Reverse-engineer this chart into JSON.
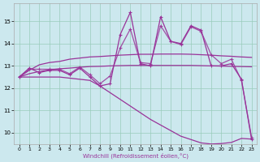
{
  "bg_color": "#cce8ee",
  "grid_color": "#99ccbb",
  "line_color": "#993399",
  "xlabel": "Windchill (Refroidissement éolien,°C)",
  "x": [
    0,
    1,
    2,
    3,
    4,
    5,
    6,
    7,
    8,
    9,
    10,
    11,
    12,
    13,
    14,
    15,
    16,
    17,
    18,
    19,
    20,
    21,
    22,
    23
  ],
  "y_zigzag": [
    12.5,
    12.9,
    12.7,
    12.8,
    12.8,
    12.6,
    12.9,
    12.5,
    12.1,
    12.2,
    14.4,
    15.4,
    13.1,
    13.0,
    15.2,
    14.1,
    14.0,
    14.8,
    14.6,
    13.0,
    13.0,
    13.1,
    12.4,
    9.7
  ],
  "y_upper_smooth": [
    12.5,
    12.85,
    12.85,
    12.85,
    12.85,
    12.65,
    12.95,
    12.6,
    12.2,
    12.55,
    13.8,
    14.65,
    13.15,
    13.1,
    14.8,
    14.1,
    13.95,
    14.75,
    14.55,
    13.5,
    13.1,
    13.3,
    12.35,
    9.8
  ],
  "y_trend_upper": [
    12.5,
    12.8,
    13.05,
    13.15,
    13.2,
    13.3,
    13.35,
    13.4,
    13.42,
    13.45,
    13.48,
    13.5,
    13.52,
    13.52,
    13.53,
    13.53,
    13.53,
    13.52,
    13.5,
    13.48,
    13.45,
    13.43,
    13.4,
    13.38
  ],
  "y_trend_flat": [
    12.5,
    12.65,
    12.75,
    12.82,
    12.87,
    12.9,
    12.94,
    12.97,
    12.98,
    13.0,
    13.01,
    13.02,
    13.02,
    13.02,
    13.02,
    13.02,
    13.02,
    13.02,
    13.01,
    13.0,
    12.99,
    12.98,
    12.97,
    12.96
  ],
  "y_bottom": [
    12.5,
    12.5,
    12.5,
    12.5,
    12.5,
    12.45,
    12.4,
    12.35,
    12.1,
    11.8,
    11.5,
    11.2,
    10.9,
    10.6,
    10.35,
    10.1,
    9.85,
    9.7,
    9.55,
    9.5,
    9.52,
    9.57,
    9.75,
    9.72
  ],
  "xlim": [
    -0.5,
    23.5
  ],
  "ylim": [
    9.5,
    15.8
  ],
  "yticks": [
    10,
    11,
    12,
    13,
    14,
    15
  ],
  "xticks": [
    0,
    1,
    2,
    3,
    4,
    5,
    6,
    7,
    8,
    9,
    10,
    11,
    12,
    13,
    14,
    15,
    16,
    17,
    18,
    19,
    20,
    21,
    22,
    23
  ]
}
